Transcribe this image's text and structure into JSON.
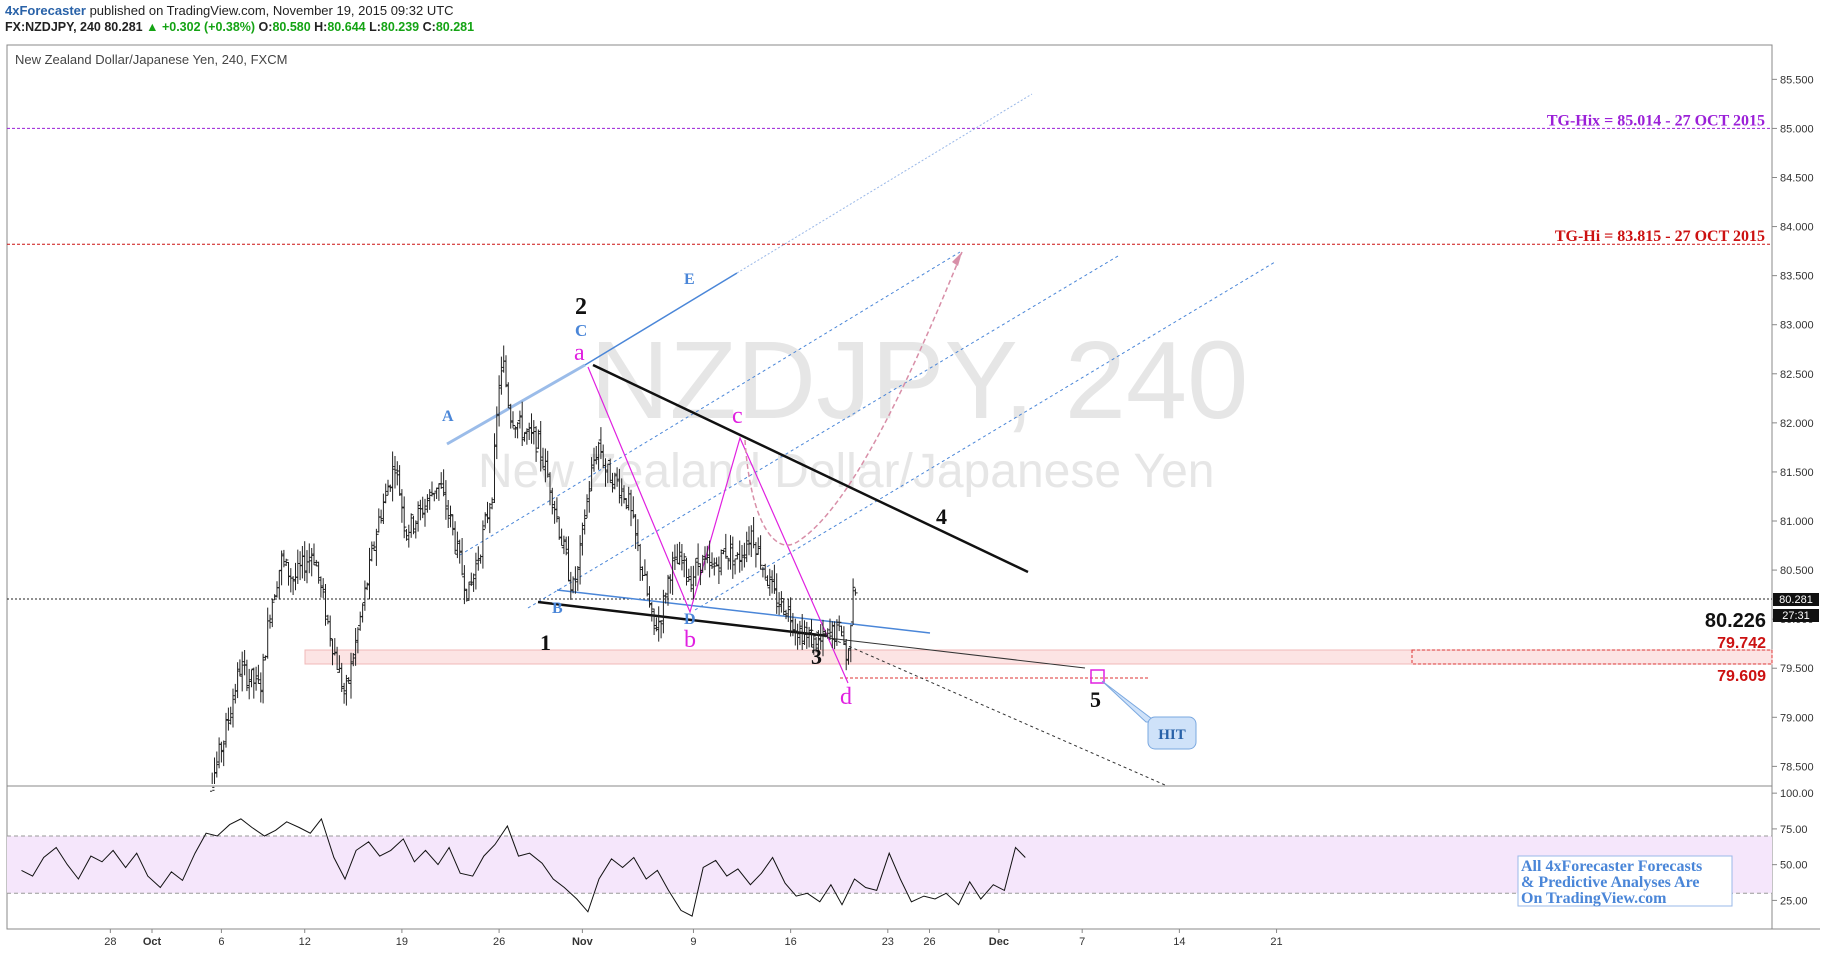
{
  "header": {
    "brand": "4xForecaster",
    "published": "published on TradingView.com, November 19, 2015 09:32 UTC",
    "symbol": "FX:NZDJPY, 240",
    "last": "80.281",
    "change": "+0.302 (+0.38%)",
    "o_label": "O:",
    "o_value": "80.580",
    "h_label": "H:",
    "h_value": "80.644",
    "l_label": "L:",
    "l_value": "80.239",
    "c_label": "C:",
    "c_value": "80.281"
  },
  "colors": {
    "candle": "#222222",
    "blue": "#4a86d8",
    "magenta": "#e020e0",
    "purple": "#9b20d8",
    "red": "#cc1111",
    "rsi_band": "#f5e6fb"
  },
  "chart_data": {
    "type": "candlestick",
    "title": "New Zealand Dollar/Japanese Yen, 240, FXCM",
    "watermark_symbol": "NZDJPY, 240",
    "watermark_name": "New Zealand Dollar/Japanese Yen",
    "ylim": [
      78.3,
      85.85
    ],
    "y_ticks": [
      "85.500",
      "85.000",
      "84.500",
      "84.000",
      "83.500",
      "83.000",
      "82.500",
      "82.000",
      "81.500",
      "81.000",
      "80.500",
      "80.000",
      "79.500",
      "79.000",
      "78.500"
    ],
    "x_ticks": [
      {
        "label": "28",
        "day": -3
      },
      {
        "label": "Oct",
        "day": 0
      },
      {
        "label": "6",
        "day": 5
      },
      {
        "label": "12",
        "day": 11
      },
      {
        "label": "19",
        "day": 18
      },
      {
        "label": "26",
        "day": 25
      },
      {
        "label": "Nov",
        "day": 31
      },
      {
        "label": "9",
        "day": 39
      },
      {
        "label": "16",
        "day": 46
      },
      {
        "label": "23",
        "day": 53
      },
      {
        "label": "26",
        "day": 56
      },
      {
        "label": "Dec",
        "day": 61
      },
      {
        "label": "7",
        "day": 67
      },
      {
        "label": "14",
        "day": 74
      },
      {
        "label": "21",
        "day": 81
      }
    ],
    "price_path": [
      [
        3.5,
        78.2
      ],
      [
        4.4,
        78.4
      ],
      [
        5.2,
        78.8
      ],
      [
        6.3,
        79.5
      ],
      [
        7.8,
        79.3
      ],
      [
        8.5,
        80.1
      ],
      [
        9.3,
        80.6
      ],
      [
        10.2,
        80.4
      ],
      [
        11.6,
        80.7
      ],
      [
        12.6,
        80.0
      ],
      [
        13.9,
        79.2
      ],
      [
        15.0,
        80.0
      ],
      [
        16.3,
        81.0
      ],
      [
        17.5,
        81.6
      ],
      [
        18.3,
        80.9
      ],
      [
        19.4,
        81.1
      ],
      [
        20.6,
        81.4
      ],
      [
        21.5,
        81.0
      ],
      [
        22.3,
        80.5
      ],
      [
        22.8,
        80.25
      ],
      [
        23.6,
        80.7
      ],
      [
        24.5,
        81.3
      ],
      [
        25.0,
        82.4
      ],
      [
        25.3,
        82.6
      ],
      [
        25.8,
        82.1
      ],
      [
        26.8,
        81.9
      ],
      [
        27.8,
        81.8
      ],
      [
        28.8,
        81.3
      ],
      [
        29.5,
        80.8
      ],
      [
        30.3,
        80.3
      ],
      [
        30.7,
        80.5
      ],
      [
        31.2,
        81.1
      ],
      [
        31.8,
        81.6
      ],
      [
        32.2,
        81.8
      ],
      [
        32.7,
        81.5
      ],
      [
        33.5,
        81.4
      ],
      [
        34.3,
        81.2
      ],
      [
        35.0,
        80.7
      ],
      [
        35.6,
        80.3
      ],
      [
        36.1,
        79.9
      ],
      [
        36.6,
        80.0
      ],
      [
        37.3,
        80.5
      ],
      [
        38.1,
        80.6
      ],
      [
        38.8,
        80.4
      ],
      [
        39.5,
        80.6
      ],
      [
        40.4,
        80.5
      ],
      [
        41.3,
        80.7
      ],
      [
        42.2,
        80.6
      ],
      [
        43.2,
        80.9
      ],
      [
        44.1,
        80.5
      ],
      [
        44.9,
        80.2
      ],
      [
        45.8,
        80.1
      ],
      [
        46.5,
        79.9
      ],
      [
        47.3,
        79.8
      ],
      [
        48.1,
        79.75
      ],
      [
        48.9,
        79.85
      ],
      [
        49.7,
        79.9
      ],
      [
        50.1,
        79.5
      ],
      [
        50.5,
        80.4
      ],
      [
        50.8,
        80.28
      ]
    ],
    "rsi": {
      "ylim": [
        5,
        105
      ],
      "ticks": [
        "100.00",
        "75.00",
        "50.00",
        "25.00"
      ],
      "levels": [
        70,
        30
      ],
      "path": [
        [
          -9.4,
          46
        ],
        [
          -8.6,
          42
        ],
        [
          -7.8,
          55
        ],
        [
          -6.9,
          62
        ],
        [
          -6.1,
          50
        ],
        [
          -5.3,
          40
        ],
        [
          -4.4,
          56
        ],
        [
          -3.6,
          52
        ],
        [
          -2.8,
          60
        ],
        [
          -1.9,
          48
        ],
        [
          -1.1,
          58
        ],
        [
          -0.3,
          42
        ],
        [
          0.6,
          34
        ],
        [
          1.4,
          45
        ],
        [
          2.2,
          39
        ],
        [
          3.1,
          58
        ],
        [
          3.9,
          72
        ],
        [
          4.7,
          70
        ],
        [
          5.6,
          78
        ],
        [
          6.4,
          82
        ],
        [
          7.2,
          76
        ],
        [
          8.1,
          70
        ],
        [
          8.9,
          74
        ],
        [
          9.7,
          80
        ],
        [
          10.6,
          76
        ],
        [
          11.4,
          72
        ],
        [
          12.2,
          82
        ],
        [
          13.1,
          55
        ],
        [
          13.9,
          40
        ],
        [
          14.7,
          60
        ],
        [
          15.6,
          66
        ],
        [
          16.4,
          56
        ],
        [
          17.2,
          60
        ],
        [
          18.1,
          68
        ],
        [
          18.9,
          52
        ],
        [
          19.7,
          60
        ],
        [
          20.6,
          50
        ],
        [
          21.4,
          62
        ],
        [
          22.2,
          44
        ],
        [
          23.1,
          42
        ],
        [
          23.9,
          56
        ],
        [
          24.7,
          64
        ],
        [
          25.6,
          77
        ],
        [
          26.4,
          56
        ],
        [
          27.2,
          58
        ],
        [
          28.1,
          51
        ],
        [
          28.9,
          40
        ],
        [
          29.7,
          34
        ],
        [
          30.6,
          26
        ],
        [
          31.4,
          17
        ],
        [
          32.2,
          40
        ],
        [
          33.1,
          54
        ],
        [
          33.9,
          48
        ],
        [
          34.7,
          55
        ],
        [
          35.6,
          40
        ],
        [
          36.4,
          46
        ],
        [
          37.2,
          32
        ],
        [
          38.1,
          18
        ],
        [
          38.9,
          14
        ],
        [
          39.7,
          48
        ],
        [
          40.6,
          53
        ],
        [
          41.4,
          42
        ],
        [
          42.2,
          47
        ],
        [
          43.1,
          36
        ],
        [
          43.9,
          44
        ],
        [
          44.7,
          55
        ],
        [
          45.6,
          37
        ],
        [
          46.4,
          28
        ],
        [
          47.2,
          30
        ],
        [
          48.1,
          24
        ],
        [
          48.9,
          36
        ],
        [
          49.7,
          22
        ],
        [
          50.6,
          40
        ],
        [
          51.4,
          34
        ],
        [
          52.2,
          32
        ],
        [
          53.1,
          58
        ],
        [
          53.9,
          40
        ],
        [
          54.7,
          24
        ],
        [
          55.6,
          28
        ],
        [
          56.4,
          26
        ],
        [
          57.2,
          30
        ],
        [
          58.1,
          22
        ],
        [
          58.9,
          38
        ],
        [
          59.7,
          26
        ],
        [
          60.6,
          36
        ],
        [
          61.4,
          32
        ],
        [
          62.2,
          62
        ],
        [
          62.9,
          55
        ]
      ]
    },
    "levels": {
      "tg_hix": {
        "label": "TG-Hix = 85.014 - 27 OCT 2015",
        "value": 85.0
      },
      "tg_hi": {
        "label": "TG-Hi = 83.815 - 27 OCT 2015",
        "value": 83.82
      },
      "last_price": "80.281",
      "countdown": "27:31",
      "target_a": "80.226",
      "target_b": "79.742",
      "target_c": "79.609"
    },
    "annotations": {
      "black_waves": [
        "1",
        "2",
        "3",
        "4",
        "5"
      ],
      "blue_waves": [
        "A",
        "B",
        "C",
        "D",
        "E"
      ],
      "magenta_waves": [
        "a",
        "b",
        "c",
        "d"
      ],
      "hit_label": "HIT"
    },
    "promo": [
      "All 4xForecaster Forecasts",
      "& Predictive Analyses Are",
      "On TradingView.com"
    ]
  }
}
